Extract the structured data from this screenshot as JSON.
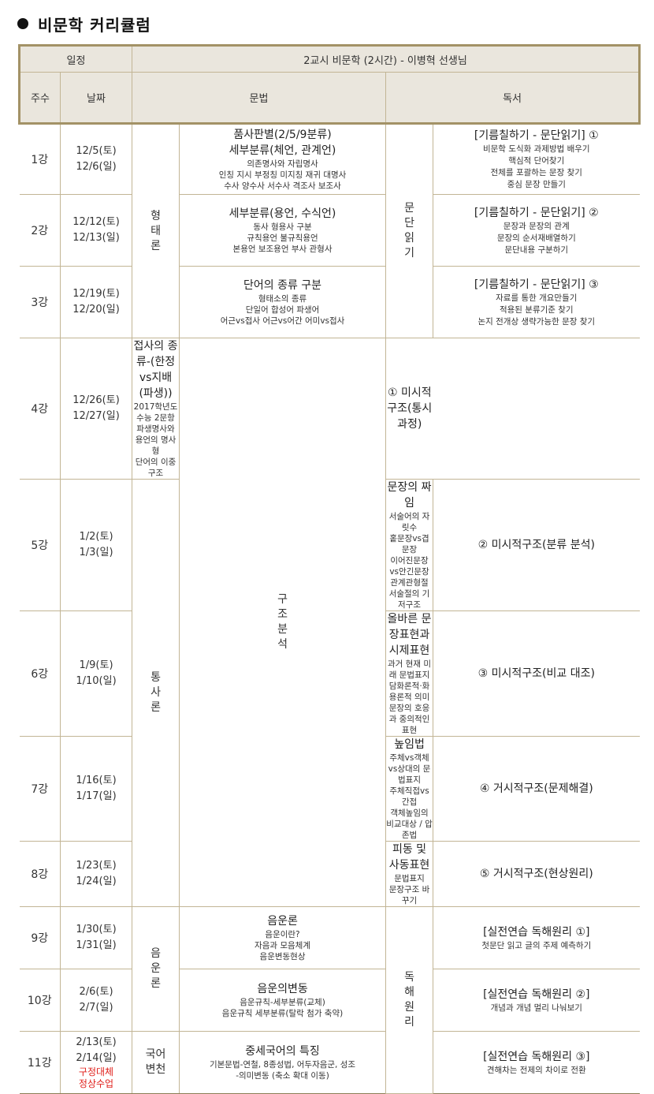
{
  "title": "비문학 커리큘럼",
  "header": {
    "schedule": "일정",
    "class_title": "2교시 비문학 (2시간) - 이병혁 선생님",
    "week": "주수",
    "date": "날짜",
    "grammar": "문법",
    "reading": "독서"
  },
  "grammar_groups": [
    "형태론",
    "통사론",
    "음운론",
    "국어변천"
  ],
  "reading_groups": [
    "문단읽기",
    "구조분석",
    "독해원리"
  ],
  "rows": [
    {
      "week": "1강",
      "dates": [
        "12/5(토)",
        "12/6(일)"
      ],
      "grammar_pre": "품사판별(2/5/9분류)",
      "grammar_title": "세부분류(체언, 관계언)",
      "grammar_lines": [
        "의존명사와 자립명사",
        "인칭 지시 부정칭 미지칭 재귀 대명사",
        "수사 양수사 서수사 격조사 보조사"
      ],
      "reading_title": "[기름칠하기 - 문단읽기] ①",
      "reading_lines": [
        "비문학 도식화 과제방법 배우기",
        "핵심적 단어찾기",
        "전체를 포괄하는 문장 찾기",
        "중심 문장 만들기"
      ]
    },
    {
      "week": "2강",
      "dates": [
        "12/12(토)",
        "12/13(일)"
      ],
      "grammar_title": "세부분류(용언, 수식언)",
      "grammar_lines": [
        "동사 형용사 구분",
        "규칙용언 불규칙용언",
        "본용언 보조용언 부사 관형사"
      ],
      "reading_title": "[기름칠하기 - 문단읽기] ②",
      "reading_lines": [
        "문장과 문장의 관계",
        "문장의 순서재배열하기",
        "문단내용 구분하기"
      ]
    },
    {
      "week": "3강",
      "dates": [
        "12/19(토)",
        "12/20(일)"
      ],
      "grammar_title": "단어의 종류 구분",
      "grammar_lines": [
        "형태소의 종류",
        "단일어 합성어 파생어",
        "어근vs접사 어근vs어간 어미vs접사"
      ],
      "reading_title": "[기름칠하기 - 문단읽기] ③",
      "reading_lines": [
        "자료를 통한 개요만들기",
        "적용된 분류기준 찾기",
        "논지 전개상 생략가능한 문장 찾기"
      ]
    },
    {
      "week": "4강",
      "dates": [
        "12/26(토)",
        "12/27(일)"
      ],
      "grammar_title": "접사의 종류-(한정vs지배(파생))",
      "grammar_lines": [
        "2017학년도 수능 2문항",
        "파생명사와 용언의 명사형",
        "단어의 이중구조"
      ],
      "reading_title": "① 미시적구조(통시 과정)",
      "reading_lines": []
    },
    {
      "week": "5강",
      "dates": [
        "1/2(토)",
        "1/3(일)"
      ],
      "grammar_title": "문장의 짜임",
      "grammar_lines": [
        "서술어의 자릿수",
        "홑문장vs겹문장",
        "이어진문장vs안긴문장관계관형절",
        "서술절의 기저구조"
      ],
      "reading_title": "② 미시적구조(분류 분석)",
      "reading_lines": []
    },
    {
      "week": "6강",
      "dates": [
        "1/9(토)",
        "1/10(일)"
      ],
      "grammar_title": "올바른 문장표현과 시제표현",
      "grammar_lines": [
        "과거 현재 미래 문법표지",
        "담화론적·화용론적 의미",
        "문장의 호응과 중의적인 표현"
      ],
      "reading_title": "③ 미시적구조(비교 대조)",
      "reading_lines": []
    },
    {
      "week": "7강",
      "dates": [
        "1/16(토)",
        "1/17(일)"
      ],
      "grammar_title": "높임법",
      "grammar_lines": [
        "주체vs객체vs상대의 문법표지",
        "주체직접vs간접",
        "객체높임의 비교대상 / 압존법"
      ],
      "reading_title": "④ 거시적구조(문제해결)",
      "reading_lines": []
    },
    {
      "week": "8강",
      "dates": [
        "1/23(토)",
        "1/24(일)"
      ],
      "grammar_title": "피동 및 사동표현",
      "grammar_lines": [
        "문법표지",
        "문장구조 바꾸기"
      ],
      "reading_title": "⑤ 거시적구조(현상원리)",
      "reading_lines": []
    },
    {
      "week": "9강",
      "dates": [
        "1/30(토)",
        "1/31(일)"
      ],
      "grammar_title": "음운론",
      "grammar_lines": [
        "음운이란?",
        "자음과 모음체계",
        "음운변동현상"
      ],
      "reading_title": "[실전연습 독해원리 ①]",
      "reading_lines": [
        "첫문단 읽고 글의 주제 예측하기"
      ]
    },
    {
      "week": "10강",
      "dates": [
        "2/6(토)",
        "2/7(일)"
      ],
      "grammar_title": "음운의변동",
      "grammar_lines": [
        "음운규칙-세부분류(교체)",
        "음운규칙 세부분류(탈락 첨가 축약)"
      ],
      "reading_title": "[실전연습 독해원리 ②]",
      "reading_lines": [
        "개념과 개념 멀리 나눠보기"
      ]
    },
    {
      "week": "11강",
      "dates": [
        "2/13(토)",
        "2/14(일)"
      ],
      "date_note": [
        "구정대체",
        "정상수업"
      ],
      "grammar_title": "중세국어의 특징",
      "grammar_lines": [
        "기본문법-연철, 8종성법, 어두자음군, 성조",
        "-의미변동 (축소 확대 이동)"
      ],
      "reading_title": "[실전연습 독해원리 ③]",
      "reading_lines": [
        "견해차는 전제의 차이로 전환"
      ]
    }
  ]
}
